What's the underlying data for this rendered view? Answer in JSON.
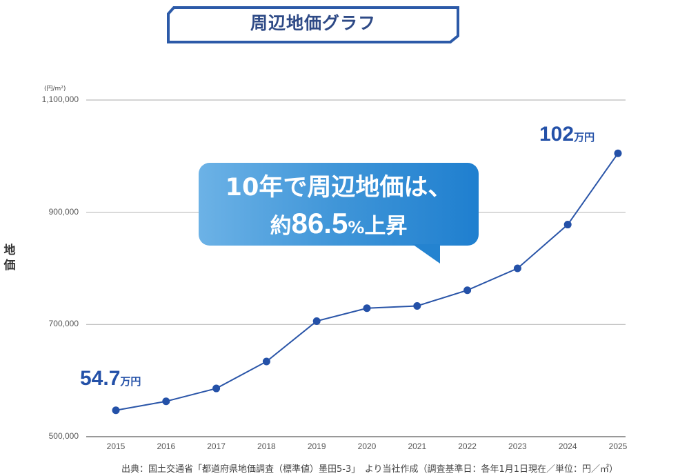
{
  "title": "周辺地価グラフ",
  "colors": {
    "line": "#2a55a8",
    "marker": "#2451a8",
    "grid": "#bbbbbb",
    "title_border": "#2c5aa8",
    "title_text": "#2e4a86",
    "callout_start": "#6cb2e6",
    "callout_end": "#1f7fcf"
  },
  "callout": {
    "line1": "10年で周辺地価は、",
    "line2_prefix": "約",
    "line2_value": "86.5",
    "line2_pct": "%",
    "line2_suffix": "上昇"
  },
  "annotations": {
    "start": {
      "value": "54.7",
      "unit": "万円"
    },
    "end": {
      "value": "102",
      "unit": "万円"
    }
  },
  "source_note": "出典：国土交通省「都道府県地価調査（標準値）墨田5-3」　より当社作成（調査基準日：各年1月1日現在／単位：円／㎡）",
  "chart_data": {
    "type": "line",
    "title": "周辺地価グラフ",
    "xlabel": "",
    "ylabel": "地価",
    "y_unit": "(円/m²)",
    "ylim": [
      500000,
      1100000
    ],
    "yticks": [
      500000,
      700000,
      900000,
      1100000
    ],
    "ytick_labels": [
      "500,000",
      "700,000",
      "900,000",
      "1,100,000"
    ],
    "grid": true,
    "legend": null,
    "categories": [
      "2015",
      "2016",
      "2017",
      "2018",
      "2019",
      "2020",
      "2021",
      "2022",
      "2023",
      "2024",
      "2025"
    ],
    "series": [
      {
        "name": "地価",
        "values": [
          547000,
          563000,
          586000,
          634000,
          706000,
          729000,
          733000,
          761000,
          800000,
          878000,
          1020000
        ]
      }
    ],
    "annotations": [
      {
        "x": "2015",
        "text": "54.7万円"
      },
      {
        "x": "2025",
        "text": "102万円"
      },
      {
        "text": "10年で周辺地価は、約86.5%上昇"
      }
    ]
  }
}
